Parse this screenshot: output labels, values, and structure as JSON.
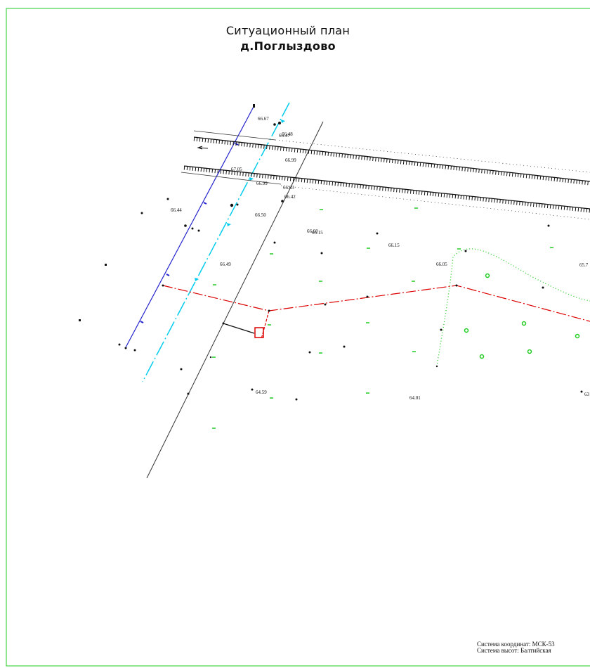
{
  "title": {
    "line1": "Ситуационный план",
    "line2": "д.Поглыздово"
  },
  "footer": {
    "coords": "Система координат: МСК-53",
    "heights": "Система высот: Балтийская"
  },
  "spot_heights": [
    "66.67",
    "66.47",
    "66.48",
    "67.05",
    "66.99",
    "66.99",
    "66.63",
    "66.42",
    "66.44",
    "66.50",
    "66.60",
    "66.15",
    "66.15",
    "66.49",
    "66.05",
    "65.7",
    "64.59",
    "64.01",
    "63"
  ],
  "colors": {
    "frame": "#22cc22",
    "road_edge": "#111111",
    "power_line": "#2222cc",
    "water_pipe": "#00ccee",
    "boundary": "#dd0000",
    "vegetation": "#22cc22"
  }
}
